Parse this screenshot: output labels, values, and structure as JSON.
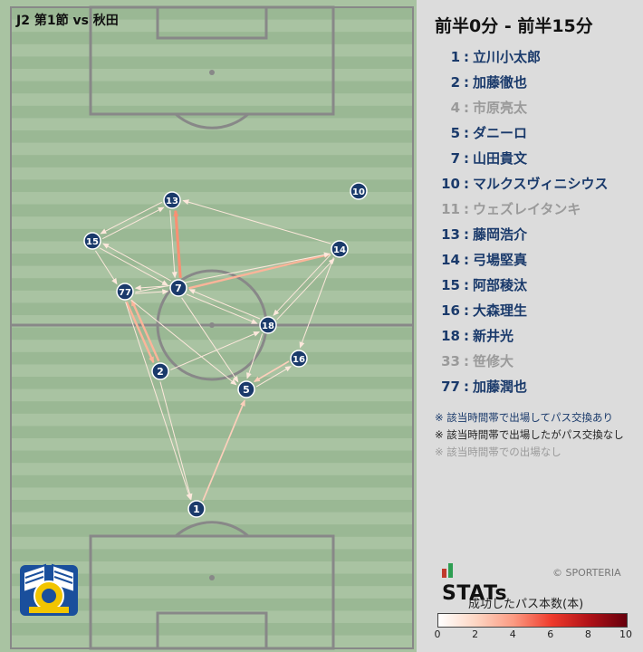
{
  "match_title": "J2 第1節 vs 秋田",
  "period": "前半0分 - 前半15分",
  "players": [
    {
      "num": "1",
      "name": "立川小太郎",
      "status": "active"
    },
    {
      "num": "2",
      "name": "加藤徹也",
      "status": "active"
    },
    {
      "num": "4",
      "name": "市原亮太",
      "status": "inactive"
    },
    {
      "num": "5",
      "name": "ダニーロ",
      "status": "active"
    },
    {
      "num": "7",
      "name": "山田貴文",
      "status": "active"
    },
    {
      "num": "10",
      "name": "マルクスヴィニシウス",
      "status": "active"
    },
    {
      "num": "11",
      "name": "ウェズレイタンキ",
      "status": "inactive"
    },
    {
      "num": "13",
      "name": "藤岡浩介",
      "status": "active"
    },
    {
      "num": "14",
      "name": "弓場堅真",
      "status": "active"
    },
    {
      "num": "15",
      "name": "阿部稜汰",
      "status": "active"
    },
    {
      "num": "16",
      "name": "大森理生",
      "status": "active"
    },
    {
      "num": "18",
      "name": "新井光",
      "status": "active"
    },
    {
      "num": "33",
      "name": "笹修大",
      "status": "inactive"
    },
    {
      "num": "77",
      "name": "加藤潤也",
      "status": "active"
    }
  ],
  "notes": {
    "a": "※ 該当時間帯で出場してパス交換あり",
    "b": "※ 該当時間帯で出場したがパス交換なし",
    "c": "※ 該当時間帯での出場なし"
  },
  "brand": {
    "name": "STATs",
    "copyright": "© SPORTERIA"
  },
  "legend": {
    "title": "成功したパス本数(本)",
    "ticks": [
      "0",
      "2",
      "4",
      "6",
      "8",
      "10"
    ],
    "range": [
      0,
      10
    ]
  },
  "colors": {
    "player_fill": "#1a3a6b",
    "pass_low": "#fde8dc",
    "pass_high": "#67000d",
    "active_text": "#1a3a6b",
    "inactive_text": "#9a9a9a"
  },
  "chart_data": {
    "type": "network",
    "nodes": [
      "1",
      "2",
      "5",
      "7",
      "10",
      "13",
      "14",
      "15",
      "16",
      "18",
      "77"
    ],
    "edges": [
      {
        "from": "7",
        "to": "13",
        "passes": 4
      },
      {
        "from": "77",
        "to": "2",
        "passes": 3
      },
      {
        "from": "2",
        "to": "77",
        "passes": 3
      },
      {
        "from": "7",
        "to": "14",
        "passes": 3
      },
      {
        "from": "1",
        "to": "5",
        "passes": 2
      },
      {
        "from": "16",
        "to": "5",
        "passes": 2
      },
      {
        "from": "5",
        "to": "16",
        "passes": 1
      },
      {
        "from": "15",
        "to": "7",
        "passes": 1
      },
      {
        "from": "7",
        "to": "15",
        "passes": 1
      },
      {
        "from": "13",
        "to": "15",
        "passes": 1
      },
      {
        "from": "15",
        "to": "13",
        "passes": 1
      },
      {
        "from": "14",
        "to": "13",
        "passes": 1
      },
      {
        "from": "7",
        "to": "77",
        "passes": 1
      },
      {
        "from": "77",
        "to": "7",
        "passes": 1
      },
      {
        "from": "18",
        "to": "7",
        "passes": 1
      },
      {
        "from": "7",
        "to": "18",
        "passes": 1
      },
      {
        "from": "18",
        "to": "14",
        "passes": 1
      },
      {
        "from": "14",
        "to": "16",
        "passes": 1
      },
      {
        "from": "2",
        "to": "18",
        "passes": 1
      },
      {
        "from": "18",
        "to": "5",
        "passes": 1
      },
      {
        "from": "77",
        "to": "1",
        "passes": 1
      },
      {
        "from": "2",
        "to": "1",
        "passes": 1
      },
      {
        "from": "77",
        "to": "5",
        "passes": 1
      },
      {
        "from": "7",
        "to": "5",
        "passes": 1
      },
      {
        "from": "77",
        "to": "14",
        "passes": 1
      },
      {
        "from": "15",
        "to": "77",
        "passes": 1
      },
      {
        "from": "13",
        "to": "7",
        "passes": 1
      },
      {
        "from": "14",
        "to": "18",
        "passes": 1
      }
    ]
  }
}
